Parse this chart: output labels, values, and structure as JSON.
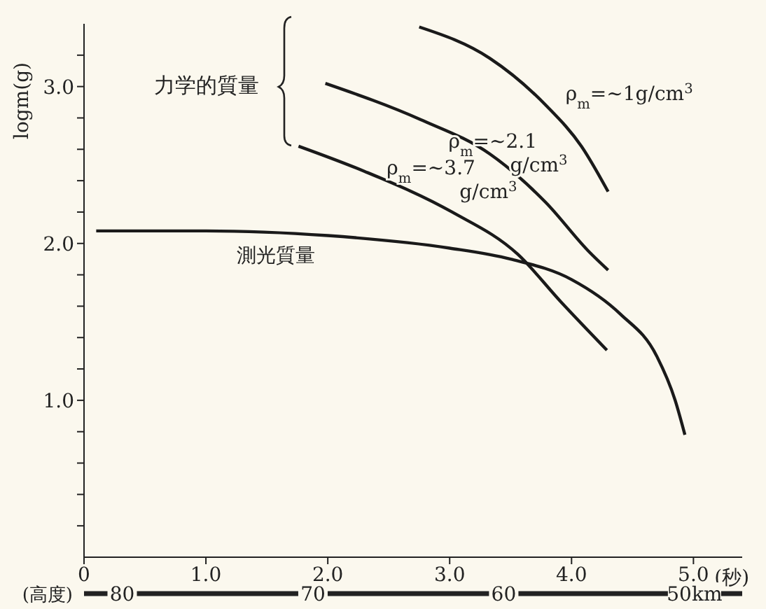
{
  "chart_data": {
    "type": "line",
    "xlabel": "(秒)",
    "ylabel": "logm(g)",
    "x2label": "(高度)",
    "xlim": [
      0,
      5.4
    ],
    "xticks": [
      0,
      {
        "value": 1,
        "label": "1.0"
      },
      {
        "value": 2,
        "label": "2.0"
      },
      {
        "value": 3,
        "label": "3.0"
      },
      {
        "value": 4,
        "label": "4.0"
      },
      {
        "value": 5,
        "label": "5.0"
      }
    ],
    "ylim": [
      0,
      3.4
    ],
    "yticks": [
      {
        "value": 0.2,
        "label": null
      },
      {
        "value": 0.4,
        "label": null
      },
      {
        "value": 0.6,
        "label": null
      },
      {
        "value": 0.8,
        "label": null
      },
      {
        "value": 1,
        "label": "1.0"
      },
      {
        "value": 1.2,
        "label": null
      },
      {
        "value": 1.4,
        "label": null
      },
      {
        "value": 1.6,
        "label": null
      },
      {
        "value": 1.8,
        "label": null
      },
      {
        "value": 2,
        "label": "2.0"
      },
      {
        "value": 2.2,
        "label": null
      },
      {
        "value": 2.4,
        "label": null
      },
      {
        "value": 2.6,
        "label": null
      },
      {
        "value": 2.8,
        "label": null
      },
      {
        "value": 3,
        "label": "3.0"
      },
      {
        "value": 3.2,
        "label": null
      }
    ],
    "x2lim": [
      82,
      47.5
    ],
    "x2ticks": [
      80,
      70,
      60,
      {
        "value": 50,
        "label": "50km"
      }
    ],
    "annotations": [
      "力学的質量"
    ],
    "grid": false,
    "legend": false,
    "marker": "none",
    "line_style": "solid",
    "series": [
      {
        "name": "ρ$_{m}$=~1g/cm$^{3}$",
        "color": "#1a1a1a",
        "x": [
          2.75,
          3.33,
          3.79,
          4.08,
          4.3
        ],
        "values": [
          3.38,
          3.18,
          2.88,
          2.62,
          2.33
        ]
      },
      {
        "name": "ρ$_{m}$=~2.1\ng/cm$^{3}$",
        "color": "#1a1a1a",
        "x": [
          1.98,
          2.76,
          3.33,
          3.79,
          4.14,
          4.3
        ],
        "values": [
          3.02,
          2.79,
          2.57,
          2.26,
          1.95,
          1.83
        ]
      },
      {
        "name": "ρ$_{m}$=~3.7\ng/cm$^{3}$",
        "color": "#1a1a1a",
        "x": [
          1.76,
          2.3,
          3.02,
          3.56,
          3.91,
          4.29
        ],
        "values": [
          2.62,
          2.46,
          2.2,
          1.93,
          1.63,
          1.32
        ]
      },
      {
        "name": "測光質量",
        "color": "#1a1a1a",
        "x": [
          0.1,
          1,
          2,
          3,
          3.5,
          4,
          4.4,
          4.7,
          4.85,
          4.93
        ],
        "values": [
          2.08,
          2.08,
          2.05,
          1.97,
          1.9,
          1.77,
          1.55,
          1.28,
          1,
          0.78
        ]
      }
    ]
  }
}
